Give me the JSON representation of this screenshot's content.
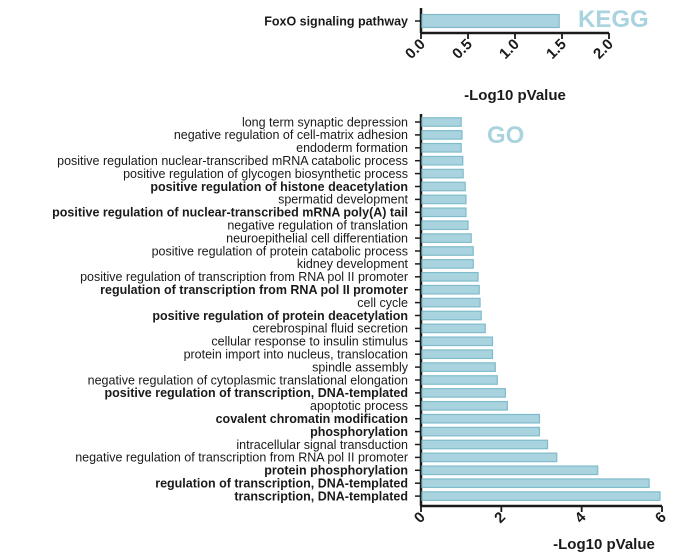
{
  "chart_data": [
    {
      "type": "bar",
      "orientation": "horizontal",
      "title": "KEGG",
      "xlabel": "-Log10 pValue",
      "xlim": [
        0,
        2.0
      ],
      "xticks": [
        "0.0",
        "0.5",
        "1.0",
        "1.5",
        "2.0"
      ],
      "categories": [
        "FoxO signaling pathway"
      ],
      "values": [
        1.47
      ],
      "bold": [
        true
      ],
      "bar_color": "#a9d3de",
      "bar_stroke": "#7fbccb",
      "title_color": "#a9d3de"
    },
    {
      "type": "bar",
      "orientation": "horizontal",
      "title": "GO",
      "xlabel": "-Log10 pValue",
      "xlim": [
        0,
        6
      ],
      "xticks": [
        "0",
        "2",
        "4",
        "6"
      ],
      "categories": [
        "long term synaptic depression",
        "negative regulation of cell-matrix adhesion",
        "endoderm formation",
        "positive regulation nuclear-transcribed mRNA catabolic process",
        "positive regulation of glycogen biosynthetic process",
        "positive regulation of histone deacetylation",
        "spermatid development",
        "positive regulation of nuclear-transcribed mRNA poly(A) tail",
        "negative regulation of translation",
        "neuroepithelial cell differentiation",
        "positive regulation of protein catabolic process",
        "kidney development",
        "positive regulation of transcription from RNA pol II promoter",
        "regulation of transcription from RNA pol II promoter",
        "cell cycle",
        "positive regulation of protein deacetylation",
        "cerebrospinal fluid secretion",
        "cellular response to insulin stimulus",
        "protein import into nucleus, translocation",
        "spindle assembly",
        "negative regulation of cytoplasmic translational elongation",
        "positive regulation of transcription, DNA-templated",
        "apoptotic process",
        "covalent chromatin modification",
        "phosphorylation",
        "intracellular signal transduction",
        "negative regulation of transcription from RNA pol II promoter",
        "protein phosphorylation",
        "regulation of transcription, DNA-templated",
        "transcription, DNA-templated"
      ],
      "values": [
        1.0,
        1.02,
        1.0,
        1.04,
        1.05,
        1.1,
        1.12,
        1.12,
        1.17,
        1.25,
        1.3,
        1.3,
        1.42,
        1.45,
        1.47,
        1.5,
        1.6,
        1.78,
        1.78,
        1.85,
        1.9,
        2.1,
        2.15,
        2.95,
        2.95,
        3.15,
        3.38,
        4.4,
        5.68,
        5.95
      ],
      "bold": [
        false,
        false,
        false,
        false,
        false,
        true,
        false,
        true,
        false,
        false,
        false,
        false,
        false,
        true,
        false,
        true,
        false,
        false,
        false,
        false,
        false,
        true,
        false,
        true,
        true,
        false,
        false,
        true,
        true,
        true
      ],
      "bar_color": "#a9d3de",
      "bar_stroke": "#7fbccb",
      "title_color": "#a9d3de"
    }
  ]
}
